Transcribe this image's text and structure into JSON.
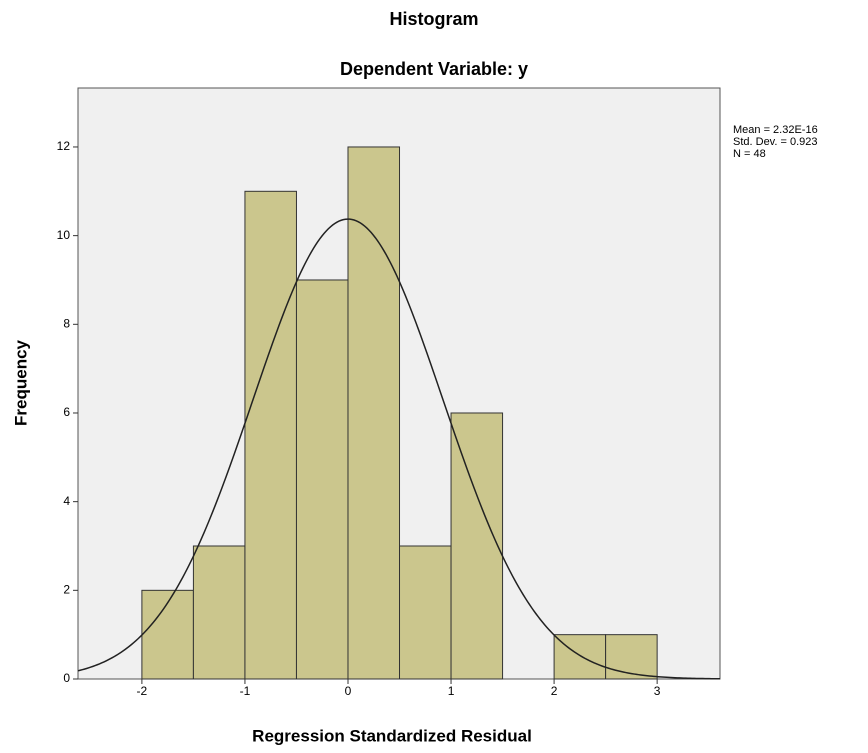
{
  "chart_data": {
    "type": "histogram",
    "title": "Histogram",
    "subtitle": "Dependent Variable: y",
    "x_label": "Regression Standardized Residual",
    "y_label": "Frequency",
    "bins": [
      -2,
      -1.5,
      -1,
      -0.5,
      0,
      0.5,
      1,
      1.5,
      2,
      2.5,
      3
    ],
    "values": [
      2,
      3,
      11,
      9,
      12,
      3,
      6,
      0,
      1,
      1
    ],
    "color": "#cbc68d",
    "xlim": [
      -2.62,
      3.61
    ],
    "xticks": [
      -2,
      -1,
      0,
      1,
      2,
      3
    ],
    "ylim": [
      0,
      13.33
    ],
    "yticks": [
      0,
      2,
      4,
      6,
      8,
      10,
      12
    ],
    "normal_curve": {
      "mean": 2.32e-16,
      "sd": 0.923,
      "n": 48,
      "labels": [
        "Mean = 2.32E-16",
        "Std. Dev. = 0.923",
        "N = 48"
      ]
    }
  }
}
